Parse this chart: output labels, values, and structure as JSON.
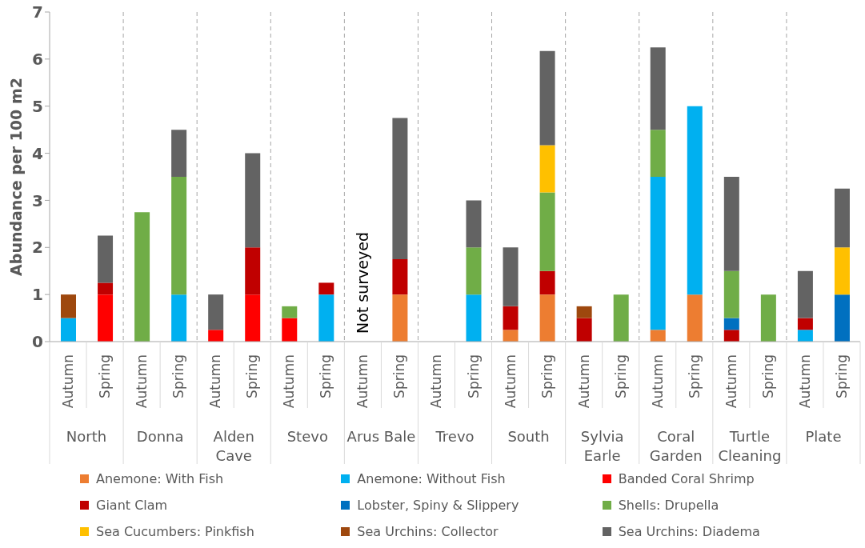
{
  "chart_data": {
    "type": "bar",
    "stacked": true,
    "ylabel": "Abundance per 100 m2",
    "ylim": [
      0,
      7
    ],
    "yticks": [
      0,
      1,
      2,
      3,
      4,
      5,
      6,
      7
    ],
    "legend": "bottom",
    "categories": [
      "Autumn",
      "Spring",
      "Autumn",
      "Spring",
      "Autumn",
      "Spring",
      "Autumn",
      "Spring",
      "Autumn",
      "Spring",
      "Autumn",
      "Spring",
      "Autumn",
      "Spring",
      "Autumn",
      "Spring",
      "Autumn",
      "Spring",
      "Autumn",
      "Spring",
      "Autumn",
      "Spring"
    ],
    "annotations": [
      "North",
      "Donna",
      "Alden Cave",
      "Stevo",
      "Arus Bale",
      "Trevo",
      "South",
      "Sylvia Earle",
      "Coral Garden",
      "Turtle Cleaning",
      "Plate",
      "Not surveyed"
    ],
    "series": [
      {
        "name": "Anemone: With Fish",
        "color": "#ed7d31",
        "values": [
          null,
          null,
          null,
          null,
          null,
          null,
          null,
          null,
          null,
          1,
          null,
          null,
          0.25,
          1,
          null,
          null,
          0.25,
          1,
          null,
          null,
          null,
          null
        ]
      },
      {
        "name": "Anemone: Without Fish",
        "color": "#00b0f0",
        "values": [
          0.5,
          null,
          null,
          1,
          null,
          null,
          null,
          1,
          null,
          null,
          null,
          1,
          null,
          null,
          null,
          null,
          3.25,
          4,
          null,
          null,
          0.25,
          null
        ]
      },
      {
        "name": "Banded Coral Shrimp",
        "color": "#ff0000",
        "values": [
          null,
          1,
          null,
          null,
          0.25,
          1,
          0.5,
          null,
          null,
          null,
          null,
          null,
          null,
          null,
          null,
          null,
          null,
          null,
          null,
          null,
          null,
          null
        ]
      },
      {
        "name": "Giant Clam",
        "color": "#c00000",
        "values": [
          null,
          0.25,
          null,
          null,
          null,
          1,
          null,
          0.25,
          null,
          0.75,
          null,
          null,
          0.5,
          0.5,
          0.5,
          null,
          null,
          null,
          0.25,
          null,
          0.25,
          null
        ]
      },
      {
        "name": "Lobster, Spiny & Slippery",
        "color": "#0070c0",
        "values": [
          null,
          null,
          null,
          null,
          null,
          null,
          null,
          null,
          null,
          null,
          null,
          null,
          null,
          null,
          null,
          null,
          null,
          null,
          0.25,
          null,
          null,
          1
        ]
      },
      {
        "name": "Shells: Drupella",
        "color": "#70ad47",
        "values": [
          null,
          null,
          2.75,
          2.5,
          null,
          null,
          0.25,
          null,
          null,
          null,
          null,
          1,
          null,
          1.67,
          null,
          1,
          1,
          null,
          1,
          1,
          null,
          null
        ]
      },
      {
        "name": "Sea Cucumbers: Pinkfish",
        "color": "#ffc000",
        "values": [
          null,
          null,
          null,
          null,
          null,
          null,
          null,
          null,
          null,
          null,
          null,
          null,
          null,
          1,
          null,
          null,
          null,
          null,
          null,
          null,
          null,
          1
        ]
      },
      {
        "name": "Sea Urchins: Collector",
        "color": "#9e480e",
        "values": [
          0.5,
          null,
          null,
          null,
          null,
          null,
          null,
          null,
          null,
          null,
          null,
          null,
          null,
          null,
          0.25,
          null,
          null,
          null,
          null,
          null,
          null,
          null
        ]
      },
      {
        "name": "Sea Urchins: Diadema",
        "color": "#636363",
        "values": [
          null,
          1,
          null,
          1,
          0.75,
          2,
          null,
          null,
          null,
          3,
          null,
          1,
          1.25,
          2,
          null,
          null,
          1.75,
          null,
          2,
          null,
          1,
          1.25
        ]
      }
    ]
  }
}
